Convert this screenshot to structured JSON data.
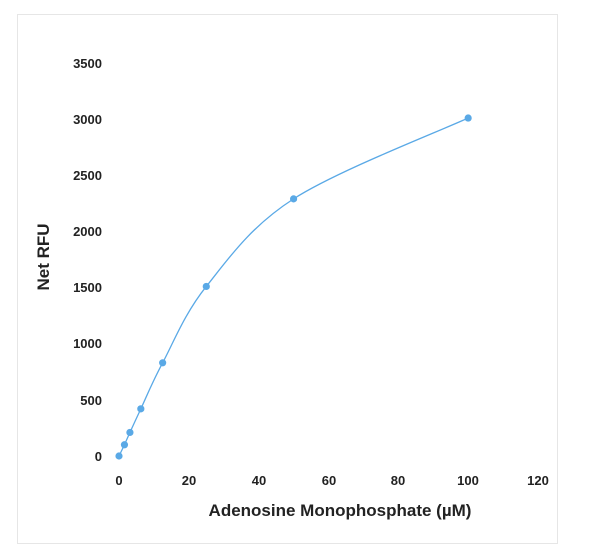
{
  "chart_data": {
    "type": "scatter",
    "title": "",
    "xlabel": "Adenosine Monophosphate (µM)",
    "ylabel": "Net RFU",
    "xlim": [
      0,
      120
    ],
    "ylim": [
      0,
      3500
    ],
    "x_ticks": [
      "0",
      "20",
      "40",
      "60",
      "80",
      "100",
      "120"
    ],
    "y_ticks": [
      "0",
      "500",
      "1000",
      "1500",
      "2000",
      "2500",
      "3000",
      "3500"
    ],
    "grid": false,
    "line_style": "smooth",
    "series_color": "#5aa9e6",
    "series": [
      {
        "x": [
          0,
          1.56,
          3.13,
          6.25,
          12.5,
          25,
          50,
          100
        ],
        "y": [
          0,
          100,
          210,
          420,
          830,
          1510,
          2290,
          3010
        ]
      }
    ]
  }
}
